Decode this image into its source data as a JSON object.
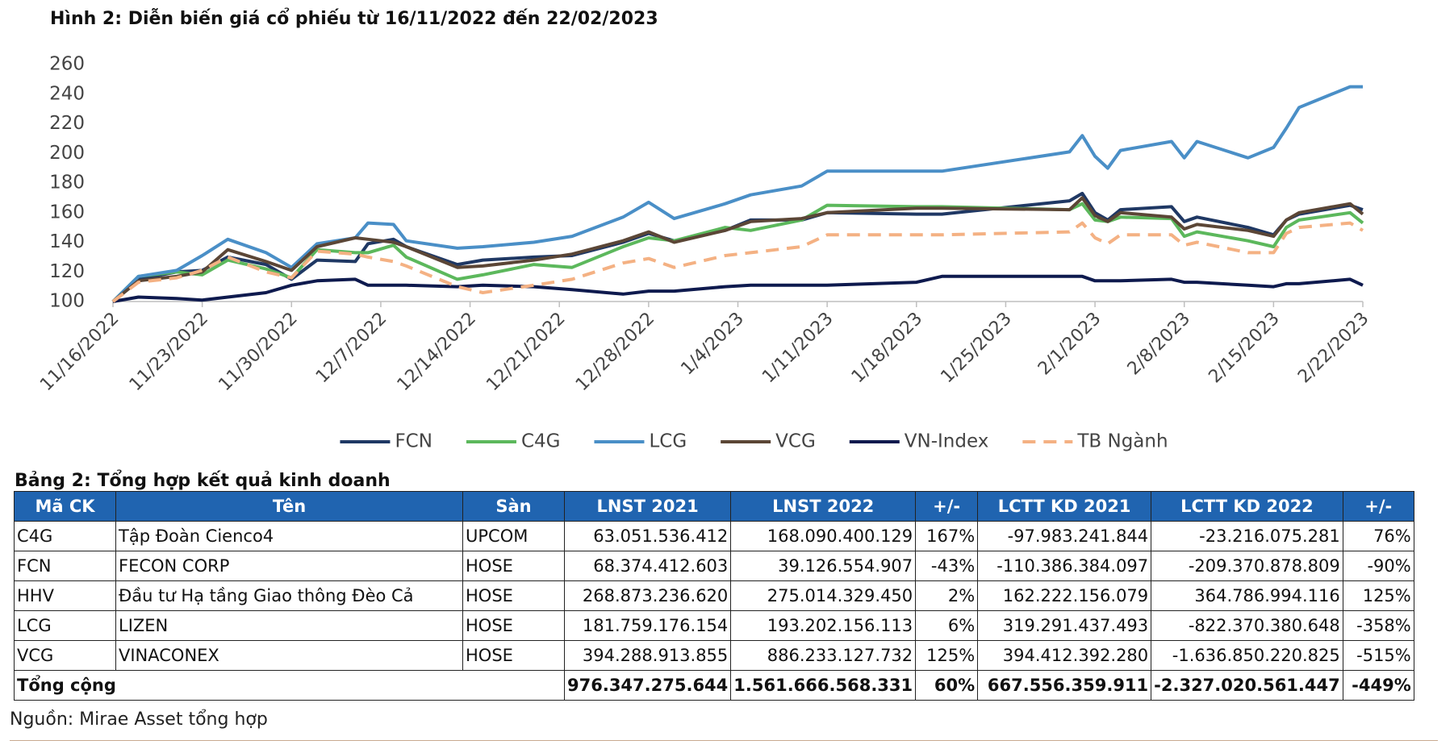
{
  "chart_data": {
    "type": "line",
    "title": "Hình 2: Diễn biến giá cổ phiếu từ 16/11/2022 đến 22/02/2023",
    "x": [
      "11/16/2022",
      "11/18/2022",
      "11/21/2022",
      "11/23/2022",
      "11/25/2022",
      "11/28/2022",
      "11/30/2022",
      "12/2/2022",
      "12/5/2022",
      "12/6/2022",
      "12/8/2022",
      "12/9/2022",
      "12/13/2022",
      "12/15/2022",
      "12/19/2022",
      "12/22/2022",
      "12/26/2022",
      "12/28/2022",
      "12/30/2022",
      "1/3/2023",
      "1/5/2023",
      "1/9/2023",
      "1/11/2023",
      "1/18/2023",
      "1/20/2023",
      "1/30/2023",
      "1/31/2023",
      "2/1/2023",
      "2/2/2023",
      "2/3/2023",
      "2/7/2023",
      "2/8/2023",
      "2/9/2023",
      "2/13/2023",
      "2/15/2023",
      "2/16/2023",
      "2/17/2023",
      "2/21/2023",
      "2/22/2023"
    ],
    "series": [
      {
        "name": "FCN",
        "color": "#1f3864",
        "values": [
          100,
          115,
          120,
          121,
          130,
          125,
          115,
          128,
          127,
          139,
          142,
          137,
          125,
          128,
          130,
          131,
          140,
          146,
          141,
          148,
          155,
          155,
          160,
          159,
          159,
          168,
          173,
          160,
          155,
          162,
          164,
          154,
          157,
          150,
          145,
          155,
          159,
          165,
          162
        ]
      },
      {
        "name": "C4G",
        "color": "#5cb85c",
        "values": [
          100,
          117,
          120,
          118,
          128,
          122,
          116,
          135,
          133,
          133,
          138,
          130,
          115,
          118,
          125,
          123,
          137,
          143,
          141,
          150,
          148,
          155,
          165,
          164,
          164,
          162,
          166,
          155,
          154,
          157,
          156,
          144,
          147,
          141,
          137,
          150,
          155,
          160,
          153
        ]
      },
      {
        "name": "LCG",
        "color": "#4a8fc7",
        "values": [
          100,
          117,
          121,
          131,
          142,
          133,
          123,
          139,
          143,
          153,
          152,
          141,
          136,
          137,
          140,
          144,
          157,
          167,
          156,
          166,
          172,
          178,
          188,
          188,
          188,
          201,
          212,
          198,
          190,
          202,
          208,
          197,
          208,
          197,
          204,
          217,
          231,
          245,
          245
        ]
      },
      {
        "name": "VCG",
        "color": "#5b4636",
        "values": [
          100,
          114,
          117,
          120,
          135,
          127,
          121,
          137,
          143,
          142,
          140,
          137,
          123,
          124,
          128,
          132,
          141,
          147,
          140,
          148,
          154,
          156,
          160,
          163,
          163,
          162,
          170,
          158,
          154,
          160,
          157,
          149,
          152,
          148,
          144,
          155,
          160,
          166,
          159
        ]
      },
      {
        "name": "VN-Index",
        "color": "#0e1a4e",
        "values": [
          100,
          103,
          102,
          101,
          103,
          106,
          111,
          114,
          115,
          111,
          111,
          111,
          110,
          111,
          110,
          108,
          105,
          107,
          107,
          110,
          111,
          111,
          111,
          113,
          117,
          117,
          117,
          114,
          114,
          114,
          115,
          113,
          113,
          111,
          110,
          112,
          112,
          115,
          111
        ]
      },
      {
        "name": "TB Ngành",
        "color": "#f4b183",
        "dash": true,
        "values": [
          100,
          113,
          116,
          121,
          130,
          120,
          116,
          134,
          132,
          130,
          127,
          124,
          110,
          106,
          111,
          115,
          126,
          129,
          123,
          131,
          133,
          137,
          145,
          145,
          145,
          147,
          153,
          143,
          139,
          145,
          145,
          138,
          140,
          133,
          133,
          146,
          150,
          153,
          148
        ]
      }
    ],
    "xlim": [
      "11/16/2022",
      "2/22/2023"
    ],
    "xticks": [
      "11/16/2022",
      "11/23/2022",
      "11/30/2022",
      "12/7/2022",
      "12/14/2022",
      "12/21/2022",
      "12/28/2022",
      "1/4/2023",
      "1/11/2023",
      "1/18/2023",
      "1/25/2023",
      "2/1/2023",
      "2/8/2023",
      "2/15/2023",
      "2/22/2023"
    ],
    "ylim": [
      100,
      260
    ],
    "yticks": [
      100,
      120,
      140,
      160,
      180,
      200,
      220,
      240,
      260
    ],
    "grid": false,
    "legend": "bottom"
  },
  "table": {
    "title": "Bảng 2: Tổng hợp kết quả kinh doanh",
    "columns": [
      "Mã CK",
      "Tên",
      "Sàn",
      "LNST 2021",
      "LNST 2022",
      "+/-",
      "LCTT KD 2021",
      "LCTT KD 2022",
      "+/-"
    ],
    "rows": [
      [
        "C4G",
        "Tập Đoàn Cienco4",
        "UPCOM",
        "63.051.536.412",
        "168.090.400.129",
        "167%",
        "-97.983.241.844",
        "-23.216.075.281",
        "76%"
      ],
      [
        "FCN",
        "FECON CORP",
        "HOSE",
        "68.374.412.603",
        "39.126.554.907",
        "-43%",
        "-110.386.384.097",
        "-209.370.878.809",
        "-90%"
      ],
      [
        "HHV",
        "Đầu tư Hạ tầng Giao thông Đèo Cả",
        "HOSE",
        "268.873.236.620",
        "275.014.329.450",
        "2%",
        "162.222.156.079",
        "364.786.994.116",
        "125%"
      ],
      [
        "LCG",
        "LIZEN",
        "HOSE",
        "181.759.176.154",
        "193.202.156.113",
        "6%",
        "319.291.437.493",
        "-822.370.380.648",
        "-358%"
      ],
      [
        "VCG",
        "VINACONEX",
        "HOSE",
        "394.288.913.855",
        "886.233.127.732",
        "125%",
        "394.412.392.280",
        "-1.636.850.220.825",
        "-515%"
      ]
    ],
    "total": {
      "label": "Tổng cộng",
      "values": [
        "976.347.275.644",
        "1.561.666.568.331",
        "60%",
        "667.556.359.911",
        "-2.327.020.561.447",
        "-449%"
      ]
    }
  },
  "source": "Nguồn: Mirae Asset tổng hợp"
}
